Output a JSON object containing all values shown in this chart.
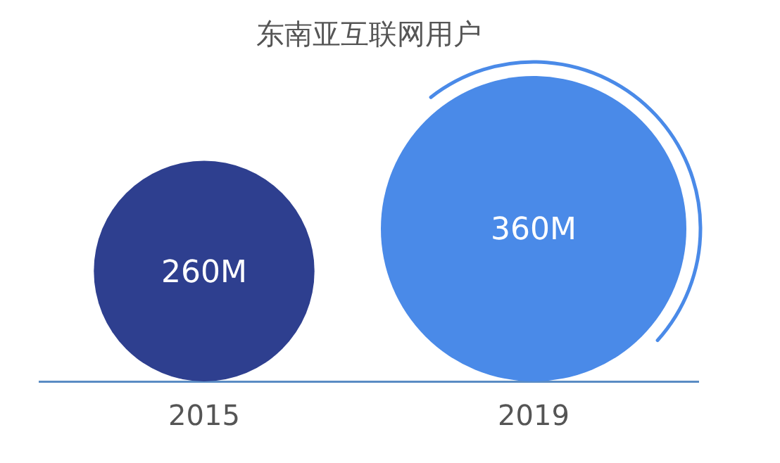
{
  "chart_data": {
    "type": "other",
    "title": "东南亚互联网用户",
    "categories": [
      "2015",
      "2019"
    ],
    "values": [
      260,
      360
    ],
    "value_labels": [
      "260M",
      "360M"
    ],
    "colors": [
      "#2e3f8f",
      "#4a8ae8"
    ]
  }
}
